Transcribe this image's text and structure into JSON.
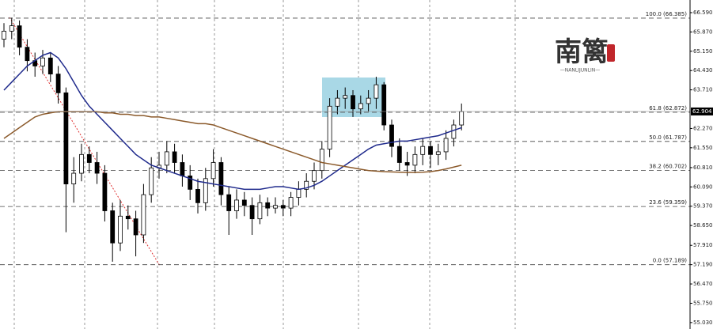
{
  "chart_data": {
    "type": "candlestick",
    "ylim": [
      54.79,
      67.062
    ],
    "yticks": [
      {
        "value": 66.59,
        "label": "66.590"
      },
      {
        "value": 65.87,
        "label": "65.870"
      },
      {
        "value": 65.15,
        "label": "65.150"
      },
      {
        "value": 64.43,
        "label": "64.430"
      },
      {
        "value": 63.71,
        "label": "63.710"
      },
      {
        "value": 62.27,
        "label": "62.270"
      },
      {
        "value": 61.55,
        "label": "61.550"
      },
      {
        "value": 60.81,
        "label": "60.810"
      },
      {
        "value": 60.09,
        "label": "60.090"
      },
      {
        "value": 59.37,
        "label": "59.370"
      },
      {
        "value": 58.65,
        "label": "58.650"
      },
      {
        "value": 57.91,
        "label": "57.910"
      },
      {
        "value": 57.19,
        "label": "57.190"
      },
      {
        "value": 56.47,
        "label": "56.470"
      },
      {
        "value": 55.75,
        "label": "55.750"
      },
      {
        "value": 55.03,
        "label": "55.030"
      }
    ],
    "current_price": 62.904,
    "levels": [
      {
        "label": "100.0 (66.385)",
        "value": 66.385
      },
      {
        "label": "61.8 (62.872)",
        "value": 62.872
      },
      {
        "label": "50.0 (61.787)",
        "value": 61.787
      },
      {
        "label": "38.2 (60.702)",
        "value": 60.702
      },
      {
        "label": "23.6 (59.359)",
        "value": 59.359
      },
      {
        "label": "0.0 (57.189)",
        "value": 57.189
      }
    ],
    "open": [
      65.6,
      65.9,
      66.1,
      65.3,
      64.8,
      64.6,
      64.9,
      64.3,
      63.6,
      60.2,
      60.6,
      61.3,
      61.0,
      60.6,
      59.2,
      58.0,
      59.0,
      58.9,
      58.3,
      59.8,
      60.8,
      60.9,
      61.4,
      61.0,
      60.5,
      60.0,
      59.5,
      60.4,
      61.0,
      59.8,
      59.2,
      59.6,
      59.4,
      58.9,
      59.5,
      59.3,
      59.4,
      59.3,
      59.7,
      60.0,
      60.3,
      60.7,
      61.5,
      63.1,
      63.4,
      63.5,
      63.0,
      63.2,
      63.4,
      63.9,
      62.4,
      61.6,
      61.0,
      60.9,
      61.3,
      61.6,
      61.3,
      61.4,
      61.9,
      62.4
    ],
    "high": [
      66.2,
      66.4,
      66.3,
      65.6,
      65.1,
      65.2,
      65.1,
      64.6,
      63.8,
      61.2,
      61.7,
      61.6,
      61.4,
      60.9,
      59.5,
      59.6,
      59.4,
      59.2,
      60.2,
      61.2,
      61.4,
      61.8,
      61.7,
      61.3,
      60.9,
      60.4,
      60.8,
      61.5,
      61.2,
      60.1,
      60.0,
      59.9,
      59.7,
      59.8,
      59.7,
      59.7,
      59.6,
      59.9,
      60.3,
      60.6,
      61.0,
      61.8,
      63.4,
      63.7,
      63.8,
      63.7,
      63.5,
      63.7,
      64.2,
      64.0,
      62.6,
      61.9,
      61.4,
      61.6,
      61.9,
      61.8,
      61.7,
      62.2,
      62.6,
      63.2
    ],
    "low": [
      65.3,
      65.6,
      65.0,
      64.4,
      64.2,
      64.3,
      64.0,
      63.2,
      58.4,
      59.5,
      60.3,
      60.6,
      60.2,
      58.8,
      57.3,
      57.7,
      58.5,
      57.5,
      58.0,
      59.5,
      60.4,
      60.6,
      60.6,
      60.1,
      59.6,
      59.1,
      59.2,
      60.1,
      59.4,
      58.3,
      58.9,
      59.0,
      58.3,
      58.7,
      59.0,
      59.1,
      59.0,
      59.0,
      59.4,
      59.7,
      60.0,
      60.4,
      61.2,
      62.8,
      63.0,
      62.7,
      62.8,
      62.9,
      63.0,
      62.2,
      61.2,
      60.7,
      60.5,
      60.6,
      60.9,
      60.8,
      60.9,
      61.1,
      61.6,
      62.2
    ],
    "close": [
      65.9,
      66.1,
      65.3,
      64.8,
      64.6,
      64.9,
      64.3,
      63.6,
      60.2,
      60.6,
      61.3,
      61.0,
      60.6,
      59.2,
      58.0,
      59.0,
      58.9,
      58.3,
      59.8,
      60.8,
      60.9,
      61.4,
      61.0,
      60.5,
      60.0,
      59.5,
      60.4,
      61.0,
      59.8,
      59.2,
      59.6,
      59.4,
      58.9,
      59.5,
      59.3,
      59.4,
      59.3,
      59.7,
      60.0,
      60.3,
      60.7,
      61.5,
      63.1,
      63.4,
      63.5,
      63.0,
      63.2,
      63.4,
      63.9,
      62.4,
      61.6,
      61.0,
      60.9,
      61.3,
      61.6,
      61.3,
      61.4,
      61.9,
      62.4,
      62.9
    ],
    "moving_averages": [
      {
        "color": "#1f2a8c",
        "values": [
          63.7,
          64.0,
          64.3,
          64.6,
          64.8,
          65.0,
          65.1,
          64.9,
          64.5,
          64.0,
          63.5,
          63.1,
          62.8,
          62.5,
          62.2,
          61.9,
          61.6,
          61.3,
          61.1,
          60.9,
          60.8,
          60.7,
          60.6,
          60.5,
          60.4,
          60.3,
          60.25,
          60.2,
          60.15,
          60.1,
          60.05,
          60.0,
          60.0,
          60.0,
          60.05,
          60.1,
          60.1,
          60.05,
          60.0,
          60.05,
          60.15,
          60.3,
          60.5,
          60.7,
          60.9,
          61.1,
          61.3,
          61.5,
          61.65,
          61.7,
          61.75,
          61.8,
          61.8,
          61.85,
          61.9,
          61.95,
          62.0,
          62.1,
          62.2,
          62.3
        ]
      },
      {
        "color": "#8b5a2b",
        "values": [
          61.9,
          62.1,
          62.3,
          62.5,
          62.7,
          62.8,
          62.85,
          62.9,
          62.9,
          62.9,
          62.9,
          62.9,
          62.9,
          62.85,
          62.85,
          62.8,
          62.8,
          62.75,
          62.75,
          62.7,
          62.7,
          62.65,
          62.6,
          62.55,
          62.5,
          62.45,
          62.45,
          62.4,
          62.3,
          62.2,
          62.1,
          62.0,
          61.9,
          61.8,
          61.7,
          61.6,
          61.5,
          61.4,
          61.3,
          61.2,
          61.1,
          61.0,
          60.95,
          60.9,
          60.85,
          60.8,
          60.75,
          60.7,
          60.68,
          60.66,
          60.65,
          60.64,
          60.63,
          60.63,
          60.64,
          60.66,
          60.7,
          60.76,
          60.83,
          60.9
        ]
      }
    ],
    "watermark": {
      "logo": "南篱",
      "text": "—NANLIJUNLIN—"
    }
  }
}
